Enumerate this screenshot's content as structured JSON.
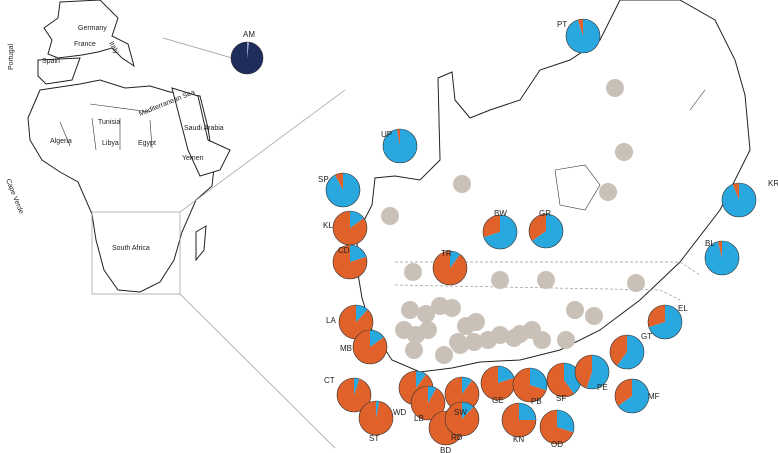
{
  "colors": [
    "#e0622a",
    "#29a8e0"
  ],
  "map_labels": [
    "Germany",
    "France",
    "Italy",
    "Spain",
    "Portugal",
    "Tunisia",
    "Mediterranean Sea",
    "Algeria",
    "Libya",
    "Egypt",
    "Saudi Arabia",
    "Yemen",
    "Cape Verde",
    "South Africa"
  ],
  "pies": [
    {
      "label": "AM",
      "values": [
        98,
        2
      ],
      "colors": [
        "#1f2d5c",
        "#8fa0c8"
      ]
    },
    {
      "label": "PT",
      "values": [
        5,
        95
      ]
    },
    {
      "label": "UP",
      "values": [
        3,
        97
      ]
    },
    {
      "label": "SP",
      "values": [
        8,
        92
      ]
    },
    {
      "label": "KR",
      "values": [
        6,
        94
      ]
    },
    {
      "label": "BL",
      "values": [
        4,
        96
      ]
    },
    {
      "label": "KL",
      "values": [
        85,
        15
      ]
    },
    {
      "label": "CD",
      "values": [
        80,
        20
      ]
    },
    {
      "label": "TR",
      "values": [
        90,
        10
      ]
    },
    {
      "label": "BW",
      "values": [
        30,
        70
      ]
    },
    {
      "label": "GR",
      "values": [
        35,
        65
      ]
    },
    {
      "label": "EL",
      "values": [
        30,
        70
      ]
    },
    {
      "label": "LA",
      "values": [
        88,
        12
      ]
    },
    {
      "label": "MB",
      "values": [
        85,
        15
      ]
    },
    {
      "label": "CT",
      "values": [
        95,
        5
      ]
    },
    {
      "label": "ST",
      "values": [
        97,
        3
      ]
    },
    {
      "label": "WD",
      "values": [
        90,
        10
      ]
    },
    {
      "label": "LB",
      "values": [
        92,
        8
      ]
    },
    {
      "label": "BD",
      "values": [
        98,
        2
      ]
    },
    {
      "label": "SW",
      "values": [
        90,
        10
      ]
    },
    {
      "label": "RD",
      "values": [
        88,
        12
      ]
    },
    {
      "label": "GE",
      "values": [
        80,
        20
      ]
    },
    {
      "label": "KN",
      "values": [
        75,
        25
      ]
    },
    {
      "label": "PB",
      "values": [
        70,
        30
      ]
    },
    {
      "label": "SF",
      "values": [
        60,
        40
      ]
    },
    {
      "label": "OD",
      "values": [
        70,
        30
      ]
    },
    {
      "label": "PE",
      "values": [
        45,
        55
      ]
    },
    {
      "label": "GT",
      "values": [
        40,
        60
      ]
    },
    {
      "label": "MF",
      "values": [
        35,
        65
      ]
    }
  ]
}
